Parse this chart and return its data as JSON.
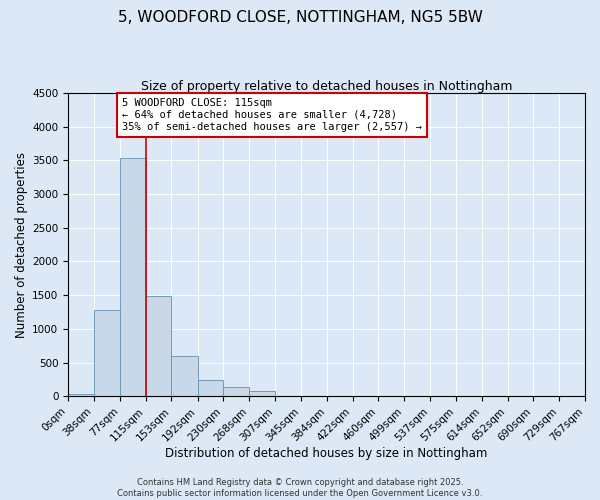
{
  "title": "5, WOODFORD CLOSE, NOTTINGHAM, NG5 5BW",
  "subtitle": "Size of property relative to detached houses in Nottingham",
  "xlabel": "Distribution of detached houses by size in Nottingham",
  "ylabel": "Number of detached properties",
  "bin_edges": [
    0,
    38,
    77,
    115,
    153,
    192,
    230,
    268,
    307,
    345,
    384,
    422,
    460,
    499,
    537,
    575,
    614,
    652,
    690,
    729,
    767
  ],
  "bin_labels": [
    "0sqm",
    "38sqm",
    "77sqm",
    "115sqm",
    "153sqm",
    "192sqm",
    "230sqm",
    "268sqm",
    "307sqm",
    "345sqm",
    "384sqm",
    "422sqm",
    "460sqm",
    "499sqm",
    "537sqm",
    "575sqm",
    "614sqm",
    "652sqm",
    "690sqm",
    "729sqm",
    "767sqm"
  ],
  "bar_heights": [
    30,
    1280,
    3530,
    1490,
    590,
    245,
    130,
    80,
    10,
    5,
    3,
    2,
    2,
    1,
    1,
    0,
    0,
    0,
    0,
    0
  ],
  "bar_color": "#c8d8e8",
  "bar_edge_color": "#6090b0",
  "property_line_x": 115,
  "property_line_color": "#cc0000",
  "ylim": [
    0,
    4500
  ],
  "yticks": [
    0,
    500,
    1000,
    1500,
    2000,
    2500,
    3000,
    3500,
    4000,
    4500
  ],
  "annotation_title": "5 WOODFORD CLOSE: 115sqm",
  "annotation_line1": "← 64% of detached houses are smaller (4,728)",
  "annotation_line2": "35% of semi-detached houses are larger (2,557) →",
  "annotation_box_color": "#ffffff",
  "annotation_box_edgecolor": "#cc0000",
  "footer_line1": "Contains HM Land Registry data © Crown copyright and database right 2025.",
  "footer_line2": "Contains public sector information licensed under the Open Government Licence v3.0.",
  "bg_color": "#dce8f5",
  "plot_bg_color": "#dce8f5",
  "title_fontsize": 11,
  "subtitle_fontsize": 9,
  "axis_label_fontsize": 8.5,
  "tick_fontsize": 7.5,
  "annotation_fontsize": 7.5,
  "footer_fontsize": 6
}
